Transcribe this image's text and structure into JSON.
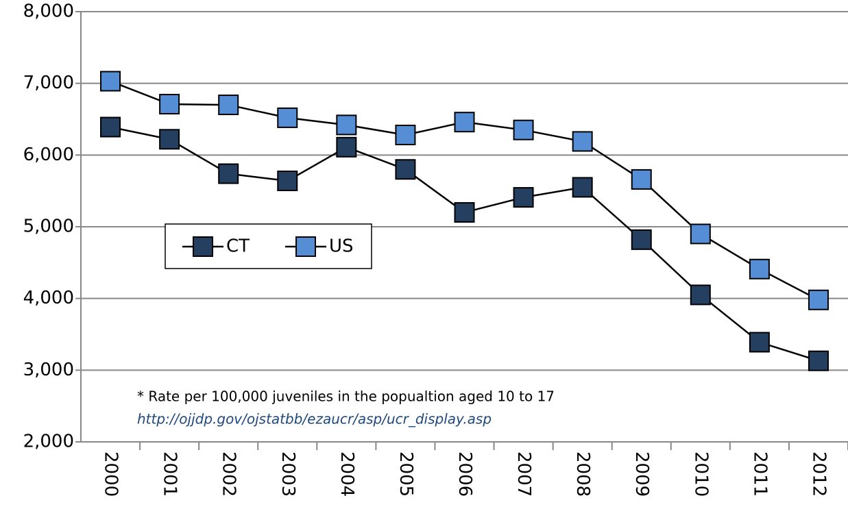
{
  "chart_data": {
    "type": "line",
    "categories": [
      "2000",
      "2001",
      "2002",
      "2003",
      "2004",
      "2005",
      "2006",
      "2007",
      "2008",
      "2009",
      "2010",
      "2011",
      "2012"
    ],
    "series": [
      {
        "name": "CT",
        "color": "#243f60",
        "values": [
          6390,
          6220,
          5740,
          5640,
          6110,
          5800,
          5200,
          5410,
          5550,
          4820,
          4050,
          3390,
          3130
        ]
      },
      {
        "name": "US",
        "color": "#558ed5",
        "values": [
          7030,
          6710,
          6700,
          6520,
          6420,
          6280,
          6460,
          6350,
          6190,
          5660,
          4900,
          4410,
          3980
        ]
      }
    ],
    "ylim": [
      2000,
      8000
    ],
    "yticks": [
      {
        "value": 2000,
        "label": "2,000"
      },
      {
        "value": 3000,
        "label": "3,000"
      },
      {
        "value": 4000,
        "label": "4,000"
      },
      {
        "value": 5000,
        "label": "5,000"
      },
      {
        "value": 6000,
        "label": "6,000"
      },
      {
        "value": 7000,
        "label": "7,000"
      },
      {
        "value": 8000,
        "label": "8,000"
      }
    ],
    "grid": true,
    "annotations": [
      "* Rate per 100,000 juveniles in the popualtion aged 10 to 17",
      "http://ojjdp.gov/ojstatbb/ezaucr/asp/ucr_display.asp"
    ]
  }
}
